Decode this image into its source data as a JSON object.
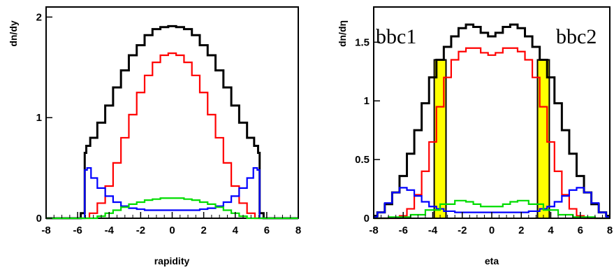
{
  "chart_data": [
    {
      "type": "line",
      "xlabel": "rapidity",
      "ylabel": "dn/dy",
      "xlim": [
        -8,
        8
      ],
      "ylim": [
        0,
        2.1
      ],
      "x_ticks": [
        "-8",
        "-6",
        "-4",
        "-2",
        "0",
        "2",
        "4",
        "6",
        "8"
      ],
      "y_ticks": [
        "0",
        "1",
        "2"
      ],
      "y_tick_values": [
        0,
        1,
        2
      ],
      "series": [
        {
          "color": "#000000",
          "x": [
            -8,
            -6,
            -5.6,
            -5.5,
            -5.4,
            -5,
            -4.5,
            -4,
            -3.5,
            -3,
            -2.5,
            -2,
            -1.5,
            -1,
            -0.5,
            0,
            0.5,
            1,
            1.5,
            2,
            2.5,
            3,
            3.5,
            4,
            4.5,
            5,
            5.4,
            5.5,
            5.6,
            6,
            8
          ],
          "y": [
            0,
            0,
            0.05,
            0.65,
            0.72,
            0.8,
            0.95,
            1.12,
            1.3,
            1.47,
            1.62,
            1.72,
            1.82,
            1.88,
            1.9,
            1.91,
            1.9,
            1.88,
            1.82,
            1.72,
            1.62,
            1.47,
            1.3,
            1.12,
            0.95,
            0.8,
            0.72,
            0.65,
            0.05,
            0,
            0
          ]
        },
        {
          "color": "#ff0000",
          "x": [
            -8,
            -6,
            -5.5,
            -5,
            -4.5,
            -4,
            -3.5,
            -3,
            -2.5,
            -2,
            -1.5,
            -1,
            -0.5,
            0,
            0.5,
            1,
            1.5,
            2,
            2.5,
            3,
            3.5,
            4,
            4.5,
            5,
            5.5,
            6,
            8
          ],
          "y": [
            0,
            0,
            0,
            0.05,
            0.15,
            0.32,
            0.55,
            0.8,
            1.03,
            1.25,
            1.42,
            1.55,
            1.62,
            1.64,
            1.62,
            1.55,
            1.42,
            1.25,
            1.03,
            0.8,
            0.55,
            0.32,
            0.15,
            0.05,
            0,
            0,
            0
          ]
        },
        {
          "color": "#0000ff",
          "x": [
            -8,
            -5.6,
            -5.5,
            -5.3,
            -5,
            -4.5,
            -4,
            -3.5,
            -3,
            -2.5,
            -2,
            -1.5,
            -1,
            0,
            1,
            1.5,
            2,
            2.5,
            3,
            3.5,
            4,
            4.5,
            5,
            5.3,
            5.5,
            5.6,
            8
          ],
          "y": [
            0,
            0,
            0.48,
            0.5,
            0.4,
            0.3,
            0.22,
            0.16,
            0.12,
            0.1,
            0.09,
            0.08,
            0.08,
            0.08,
            0.08,
            0.08,
            0.09,
            0.1,
            0.12,
            0.16,
            0.22,
            0.3,
            0.4,
            0.5,
            0.48,
            0,
            0
          ]
        },
        {
          "color": "#00dd00",
          "x": [
            -8,
            -5,
            -4.5,
            -4,
            -3.5,
            -3,
            -2.5,
            -2,
            -1.5,
            -1,
            -0.5,
            0,
            0.5,
            1,
            1.5,
            2,
            2.5,
            3,
            3.5,
            4,
            4.5,
            5,
            8
          ],
          "y": [
            0,
            0,
            0.02,
            0.05,
            0.08,
            0.11,
            0.14,
            0.16,
            0.18,
            0.19,
            0.2,
            0.2,
            0.2,
            0.19,
            0.18,
            0.16,
            0.14,
            0.11,
            0.08,
            0.05,
            0.02,
            0,
            0
          ]
        }
      ]
    },
    {
      "type": "line",
      "xlabel": "eta",
      "ylabel": "dn/dη",
      "xlim": [
        -8,
        8
      ],
      "ylim": [
        0,
        1.8
      ],
      "x_ticks": [
        "-8",
        "-6",
        "-4",
        "-2",
        "0",
        "2",
        "4",
        "6",
        "8"
      ],
      "y_ticks": [
        "0",
        "0.5",
        "1",
        "1.5"
      ],
      "y_tick_values": [
        0,
        0.5,
        1,
        1.5
      ],
      "annotations": [
        "bbc1",
        "bbc2"
      ],
      "bands": [
        {
          "color": "#ffff00",
          "x0": -3.9,
          "x1": -3.1,
          "label": "bbc1"
        },
        {
          "color": "#ffff00",
          "x0": 3.1,
          "x1": 3.9,
          "label": "bbc2"
        }
      ],
      "series": [
        {
          "color": "#000000",
          "x": [
            -8,
            -7.5,
            -7,
            -6.5,
            -6,
            -5.5,
            -5,
            -4.5,
            -4,
            -3.5,
            -3,
            -2.5,
            -2,
            -1.5,
            -1,
            -0.5,
            0,
            0.5,
            1,
            1.5,
            2,
            2.5,
            3,
            3.5,
            4,
            4.5,
            5,
            5.5,
            6,
            6.5,
            7,
            7.5,
            8
          ],
          "y": [
            0.02,
            0.05,
            0.12,
            0.22,
            0.36,
            0.55,
            0.75,
            0.98,
            1.2,
            1.35,
            1.46,
            1.55,
            1.62,
            1.65,
            1.63,
            1.58,
            1.55,
            1.58,
            1.63,
            1.65,
            1.62,
            1.55,
            1.46,
            1.35,
            1.2,
            0.98,
            0.75,
            0.55,
            0.36,
            0.22,
            0.12,
            0.05,
            0.02
          ]
        },
        {
          "color": "#ff0000",
          "x": [
            -8,
            -6.5,
            -6,
            -5.5,
            -5,
            -4.5,
            -4,
            -3.5,
            -3,
            -2.5,
            -2,
            -1.5,
            -1,
            -0.5,
            0,
            0.5,
            1,
            1.5,
            2,
            2.5,
            3,
            3.5,
            4,
            4.5,
            5,
            5.5,
            6,
            6.5,
            8
          ],
          "y": [
            0,
            0,
            0.02,
            0.08,
            0.2,
            0.4,
            0.65,
            0.95,
            1.2,
            1.35,
            1.42,
            1.45,
            1.45,
            1.41,
            1.39,
            1.41,
            1.45,
            1.45,
            1.42,
            1.35,
            1.2,
            0.95,
            0.65,
            0.4,
            0.2,
            0.08,
            0.02,
            0,
            0
          ]
        },
        {
          "color": "#0000ff",
          "x": [
            -8,
            -7.5,
            -7,
            -6.5,
            -6,
            -5.5,
            -5,
            -4.5,
            -4,
            -3.5,
            -3,
            -2,
            -1,
            0,
            1,
            2,
            3,
            3.5,
            4,
            4.5,
            5,
            5.5,
            6,
            6.5,
            7,
            7.5,
            8
          ],
          "y": [
            0.01,
            0.05,
            0.13,
            0.22,
            0.26,
            0.24,
            0.19,
            0.14,
            0.1,
            0.08,
            0.06,
            0.05,
            0.05,
            0.05,
            0.05,
            0.05,
            0.06,
            0.08,
            0.1,
            0.14,
            0.19,
            0.24,
            0.26,
            0.22,
            0.13,
            0.05,
            0.01
          ]
        },
        {
          "color": "#00dd00",
          "x": [
            -8,
            -6,
            -5,
            -4,
            -3,
            -2,
            -1.5,
            -1,
            -0.5,
            0,
            0.5,
            1,
            1.5,
            2,
            3,
            4,
            5,
            6,
            8
          ],
          "y": [
            0,
            0.01,
            0.03,
            0.07,
            0.12,
            0.15,
            0.14,
            0.12,
            0.1,
            0.1,
            0.1,
            0.12,
            0.14,
            0.15,
            0.12,
            0.07,
            0.03,
            0.01,
            0
          ]
        }
      ]
    }
  ]
}
